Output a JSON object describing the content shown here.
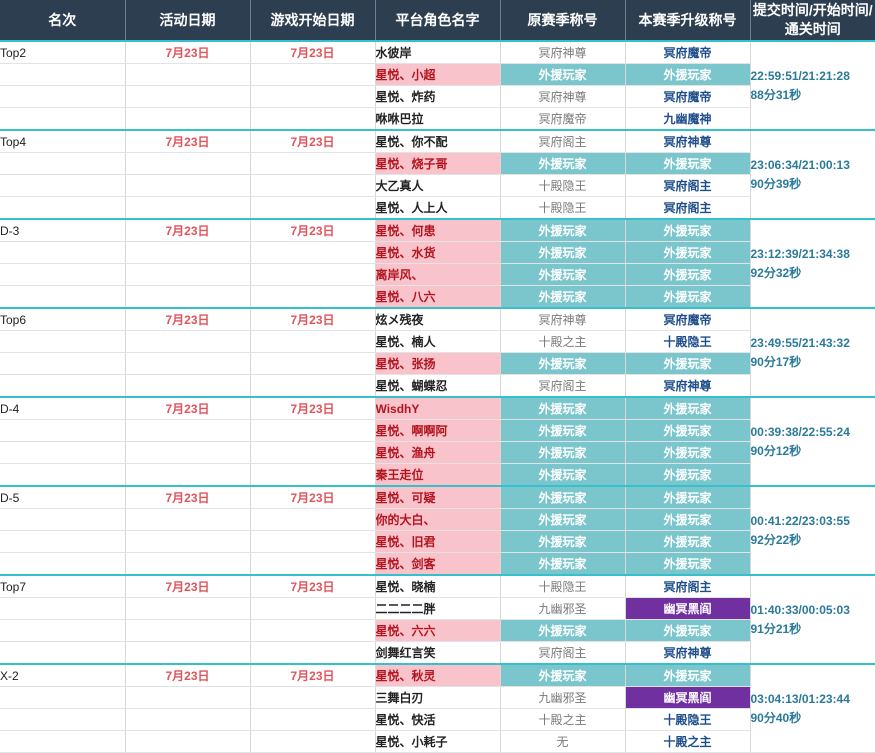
{
  "headers": {
    "rank": "名次",
    "activity_date": "活动日期",
    "game_start_date": "游戏开始日期",
    "role_name": "平台角色名字",
    "orig_title": "原赛季称号",
    "cur_title": "本赛季升级称号",
    "time": "提交时间/开始时间/通关时间"
  },
  "colors": {
    "header_bg": "#2c3e50",
    "divider": "#36c0cc",
    "pink": "#f8c3cb",
    "teal": "#7ac6cc",
    "purple": "#7030a0",
    "date_red": "#e0545c"
  },
  "groups": [
    {
      "rank": "Top2",
      "activity_date": "7月23日",
      "game_start_date": "7月23日",
      "submit": "22:59:51/21:21:28",
      "duration": "88分31秒",
      "rows": [
        {
          "name": "水彼岸",
          "name_style": "plain",
          "orig": "冥府神尊",
          "orig_style": "plain",
          "cur": "冥府魔帝",
          "cur_style": "plain"
        },
        {
          "name": "星悦、小超",
          "name_style": "pink",
          "orig": "外援玩家",
          "orig_style": "teal",
          "cur": "外援玩家",
          "cur_style": "teal"
        },
        {
          "name": "星悦、炸药",
          "name_style": "plain",
          "orig": "冥府神尊",
          "orig_style": "plain",
          "cur": "冥府魔帝",
          "cur_style": "plain"
        },
        {
          "name": "咻咻巴拉",
          "name_style": "plain",
          "orig": "冥府魔帝",
          "orig_style": "plain",
          "cur": "九幽魔神",
          "cur_style": "plain"
        }
      ]
    },
    {
      "rank": "Top4",
      "activity_date": "7月23日",
      "game_start_date": "7月23日",
      "submit": "23:06:34/21:00:13",
      "duration": "90分39秒",
      "rows": [
        {
          "name": "星悦、你不配",
          "name_style": "plain",
          "orig": "冥府阁主",
          "orig_style": "plain",
          "cur": "冥府神尊",
          "cur_style": "plain"
        },
        {
          "name": "星悦、烧子哥",
          "name_style": "pink",
          "orig": "外援玩家",
          "orig_style": "teal",
          "cur": "外援玩家",
          "cur_style": "teal"
        },
        {
          "name": "大乙真人",
          "name_style": "plain",
          "orig": "十殿隐王",
          "orig_style": "plain",
          "cur": "冥府阁主",
          "cur_style": "plain"
        },
        {
          "name": "星悦、人上人",
          "name_style": "plain",
          "orig": "十殿隐王",
          "orig_style": "plain",
          "cur": "冥府阁主",
          "cur_style": "plain"
        }
      ]
    },
    {
      "rank": "D-3",
      "activity_date": "7月23日",
      "game_start_date": "7月23日",
      "submit": "23:12:39/21:34:38",
      "duration": "92分32秒",
      "rows": [
        {
          "name": "星悦、何患",
          "name_style": "pink",
          "orig": "外援玩家",
          "orig_style": "teal",
          "cur": "外援玩家",
          "cur_style": "teal"
        },
        {
          "name": "星悦、水货",
          "name_style": "pink",
          "orig": "外援玩家",
          "orig_style": "teal",
          "cur": "外援玩家",
          "cur_style": "teal"
        },
        {
          "name": "离岸风、",
          "name_style": "pink",
          "orig": "外援玩家",
          "orig_style": "teal",
          "cur": "外援玩家",
          "cur_style": "teal"
        },
        {
          "name": "星悦、八六",
          "name_style": "pink",
          "orig": "外援玩家",
          "orig_style": "teal",
          "cur": "外援玩家",
          "cur_style": "teal"
        }
      ]
    },
    {
      "rank": "Top6",
      "activity_date": "7月23日",
      "game_start_date": "7月23日",
      "submit": "23:49:55/21:43:32",
      "duration": "90分17秒",
      "rows": [
        {
          "name": "炫メ残夜",
          "name_style": "plain",
          "orig": "冥府神尊",
          "orig_style": "plain",
          "cur": "冥府魔帝",
          "cur_style": "plain"
        },
        {
          "name": "星悦、楠人",
          "name_style": "plain",
          "orig": "十殿之主",
          "orig_style": "plain",
          "cur": "十殿隐王",
          "cur_style": "plain"
        },
        {
          "name": "星悦、张扬",
          "name_style": "pink",
          "orig": "外援玩家",
          "orig_style": "teal",
          "cur": "外援玩家",
          "cur_style": "teal"
        },
        {
          "name": "星悦、蝴蝶忍",
          "name_style": "plain",
          "orig": "冥府阁主",
          "orig_style": "plain",
          "cur": "冥府神尊",
          "cur_style": "plain"
        }
      ]
    },
    {
      "rank": "D-4",
      "activity_date": "7月23日",
      "game_start_date": "7月23日",
      "submit": "00:39:38/22:55:24",
      "duration": "90分12秒",
      "rows": [
        {
          "name": "WisdhY",
          "name_style": "pink",
          "orig": "外援玩家",
          "orig_style": "teal",
          "cur": "外援玩家",
          "cur_style": "teal"
        },
        {
          "name": "星悦、啊啊阿",
          "name_style": "pink",
          "orig": "外援玩家",
          "orig_style": "teal",
          "cur": "外援玩家",
          "cur_style": "teal"
        },
        {
          "name": "星悦、渔舟",
          "name_style": "pink",
          "orig": "外援玩家",
          "orig_style": "teal",
          "cur": "外援玩家",
          "cur_style": "teal"
        },
        {
          "name": "秦王走位",
          "name_style": "pink",
          "orig": "外援玩家",
          "orig_style": "teal",
          "cur": "外援玩家",
          "cur_style": "teal"
        }
      ]
    },
    {
      "rank": "D-5",
      "activity_date": "7月23日",
      "game_start_date": "7月23日",
      "submit": "00:41:22/23:03:55",
      "duration": "92分22秒",
      "rows": [
        {
          "name": "星悦、可疑",
          "name_style": "pink",
          "orig": "外援玩家",
          "orig_style": "teal",
          "cur": "外援玩家",
          "cur_style": "teal"
        },
        {
          "name": "你的大白、",
          "name_style": "pink",
          "orig": "外援玩家",
          "orig_style": "teal",
          "cur": "外援玩家",
          "cur_style": "teal"
        },
        {
          "name": "星悦、旧君",
          "name_style": "pink",
          "orig": "外援玩家",
          "orig_style": "teal",
          "cur": "外援玩家",
          "cur_style": "teal"
        },
        {
          "name": "星悦、剑客",
          "name_style": "pink",
          "orig": "外援玩家",
          "orig_style": "teal",
          "cur": "外援玩家",
          "cur_style": "teal"
        }
      ]
    },
    {
      "rank": "Top7",
      "activity_date": "7月23日",
      "game_start_date": "7月23日",
      "submit": "01:40:33/00:05:03",
      "duration": "91分21秒",
      "rows": [
        {
          "name": "星悦、晓楠",
          "name_style": "plain",
          "orig": "十殿隐王",
          "orig_style": "plain",
          "cur": "冥府阁主",
          "cur_style": "plain"
        },
        {
          "name": "二二二二胖",
          "name_style": "plain",
          "orig": "九幽邪圣",
          "orig_style": "plain",
          "cur": "幽冥黑阎",
          "cur_style": "purple"
        },
        {
          "name": "星悦、六六",
          "name_style": "pink",
          "orig": "外援玩家",
          "orig_style": "teal",
          "cur": "外援玩家",
          "cur_style": "teal"
        },
        {
          "name": "剑舞红言笑",
          "name_style": "plain",
          "orig": "冥府阁主",
          "orig_style": "plain",
          "cur": "冥府神尊",
          "cur_style": "plain"
        }
      ]
    },
    {
      "rank": "X-2",
      "activity_date": "7月23日",
      "game_start_date": "7月23日",
      "submit": "03:04:13/01:23:44",
      "duration": "90分40秒",
      "rows": [
        {
          "name": "星悦、秋灵",
          "name_style": "pink",
          "orig": "外援玩家",
          "orig_style": "teal",
          "cur": "外援玩家",
          "cur_style": "teal"
        },
        {
          "name": "三舞白刃",
          "name_style": "plain",
          "orig": "九幽邪圣",
          "orig_style": "plain",
          "cur": "幽冥黑阎",
          "cur_style": "purple"
        },
        {
          "name": "星悦、快活",
          "name_style": "plain",
          "orig": "十殿之主",
          "orig_style": "plain",
          "cur": "十殿隐王",
          "cur_style": "plain"
        },
        {
          "name": "星悦、小耗子",
          "name_style": "plain",
          "orig": "无",
          "orig_style": "plain",
          "cur": "十殿之主",
          "cur_style": "plain"
        }
      ]
    }
  ]
}
